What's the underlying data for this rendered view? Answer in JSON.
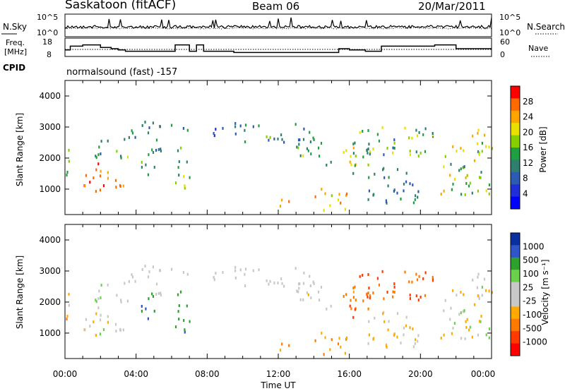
{
  "header": {
    "station_title": "Saskatoon (fitACF)",
    "beam_label": "Beam 06",
    "date_label": "20/Mar/2011"
  },
  "noise_panel": {
    "left_label": "N.Sky",
    "right_label": "N.Search",
    "left_ticks": [
      "10^5",
      "10^0"
    ],
    "right_ticks": [
      "10^5",
      "10^0"
    ]
  },
  "freq_panel": {
    "left_label_line1": "Freq.",
    "left_label_line2": "[MHz]",
    "right_label": "Nave",
    "left_ticks": [
      "18",
      "8"
    ],
    "right_ticks": [
      "60",
      "0"
    ],
    "freq_series": {
      "x_hours": [
        0,
        0.3,
        0.3,
        1.0,
        1.0,
        2.0,
        2.0,
        2.6,
        2.6,
        3.0,
        3.0,
        3.4,
        3.4,
        4.6,
        4.6,
        6.2,
        6.2,
        7.0,
        7.0,
        7.4,
        7.4,
        7.8,
        7.8,
        9.5,
        9.5,
        15.4,
        15.4,
        16.0,
        16.0,
        16.9,
        16.9,
        17.8,
        17.8,
        19.5,
        19.5,
        20.8,
        20.8,
        22.0,
        22.0,
        24.0
      ],
      "y_mhz": [
        12,
        12,
        15,
        15,
        16,
        16,
        14,
        14,
        13,
        13,
        12,
        12,
        11,
        11,
        11,
        11,
        16,
        16,
        11,
        11,
        16,
        16,
        11,
        11,
        10,
        10,
        13,
        13,
        12,
        12,
        11,
        11,
        15,
        15,
        15,
        15,
        16,
        16,
        13,
        13
      ]
    }
  },
  "cpid": {
    "label": "CPID",
    "program": "normalsound (fast) -157"
  },
  "chart_data": [
    {
      "type": "heatmap",
      "panel": "power",
      "ylabel": "Slant Range [km]",
      "xlim_hours": [
        0,
        24
      ],
      "ylim": [
        180,
        4500
      ],
      "y_ticks": [
        1000,
        2000,
        3000,
        4000
      ],
      "colorbar_label": "Power [dB]",
      "colorbar_ticks": [
        "28",
        "24",
        "20",
        "16",
        "12",
        "8",
        "4"
      ],
      "colorbar_colors": [
        "#ff0000",
        "#ff6a00",
        "#ffa500",
        "#e8e000",
        "#86d000",
        "#1f9f3f",
        "#2e7f6d",
        "#2e5bb2",
        "#1f2fd8",
        "#0000ff"
      ]
    },
    {
      "type": "heatmap",
      "panel": "velocity",
      "ylabel": "Slant Range [km]",
      "xlim_hours": [
        0,
        24
      ],
      "ylim": [
        180,
        4500
      ],
      "y_ticks": [
        1000,
        2000,
        3000,
        4000
      ],
      "colorbar_label": "Velocity [m s⁻¹]",
      "colorbar_ticks": [
        "1000",
        "500",
        "100",
        "25",
        "-25",
        "-100",
        "-500",
        "-1000"
      ],
      "colorbar_colors": [
        "#0a2f9f",
        "#2f56c9",
        "#2ea12d",
        "#6bd14d",
        "#c8c8c8",
        "#c8c8c8",
        "#ffaa00",
        "#ff7a00",
        "#ff3a00",
        "#ff0000"
      ]
    }
  ],
  "x_axis": {
    "label": "Time UT",
    "tick_labels": [
      "00:00",
      "04:00",
      "08:00",
      "12:00",
      "16:00",
      "20:00",
      "00:00"
    ]
  },
  "scatter_regions": [
    {
      "t0": 0.0,
      "t1": 0.3,
      "r0": 900,
      "r1": 2300,
      "pv": [
        12,
        16
      ],
      "vv": [
        -120,
        30
      ]
    },
    {
      "t0": 1.0,
      "t1": 2.5,
      "r0": 900,
      "r1": 1900,
      "pv": [
        20,
        30
      ],
      "vv": [
        -60,
        40
      ]
    },
    {
      "t0": 2.3,
      "t1": 3.3,
      "r0": 700,
      "r1": 1400,
      "pv": [
        22,
        30
      ],
      "vv": [
        -40,
        30
      ]
    },
    {
      "t0": 1.3,
      "t1": 2.6,
      "r0": 2000,
      "r1": 2600,
      "pv": [
        6,
        14
      ],
      "vv": [
        0,
        40
      ]
    },
    {
      "t0": 2.8,
      "t1": 3.6,
      "r0": 2000,
      "r1": 2900,
      "pv": [
        8,
        20
      ],
      "vv": [
        -20,
        30
      ]
    },
    {
      "t0": 3.6,
      "t1": 5.0,
      "r0": 2500,
      "r1": 3200,
      "pv": [
        6,
        16
      ],
      "vv": [
        -20,
        20
      ]
    },
    {
      "t0": 4.2,
      "t1": 5.2,
      "r0": 1300,
      "r1": 2300,
      "pv": [
        8,
        16
      ],
      "vv": [
        20,
        600
      ]
    },
    {
      "t0": 5.0,
      "t1": 6.0,
      "r0": 2200,
      "r1": 3100,
      "pv": [
        6,
        14
      ],
      "vv": [
        -20,
        20
      ]
    },
    {
      "t0": 6.1,
      "t1": 7.0,
      "r0": 1000,
      "r1": 2400,
      "pv": [
        10,
        20
      ],
      "vv": [
        30,
        600
      ]
    },
    {
      "t0": 6.6,
      "t1": 7.0,
      "r0": 2400,
      "r1": 3000,
      "pv": [
        6,
        12
      ],
      "vv": [
        -20,
        20
      ]
    },
    {
      "t0": 8.0,
      "t1": 10.0,
      "r0": 2700,
      "r1": 3200,
      "pv": [
        4,
        10
      ],
      "vv": [
        -20,
        20
      ]
    },
    {
      "t0": 10.0,
      "t1": 14.0,
      "r0": 2500,
      "r1": 3100,
      "pv": [
        6,
        16
      ],
      "vv": [
        -20,
        25
      ]
    },
    {
      "t0": 13.0,
      "t1": 15.0,
      "r0": 1700,
      "r1": 2600,
      "pv": [
        8,
        20
      ],
      "vv": [
        -30,
        20
      ]
    },
    {
      "t0": 14.0,
      "t1": 16.0,
      "r0": 300,
      "r1": 1000,
      "pv": [
        16,
        28
      ],
      "vv": [
        -150,
        -30
      ]
    },
    {
      "t0": 11.5,
      "t1": 12.8,
      "r0": 380,
      "r1": 650,
      "pv": [
        22,
        30
      ],
      "vv": [
        -200,
        -40
      ]
    },
    {
      "t0": 15.5,
      "t1": 17.5,
      "r0": 1500,
      "r1": 2500,
      "pv": [
        10,
        24
      ],
      "vv": [
        -700,
        -80
      ]
    },
    {
      "t0": 16.5,
      "t1": 20.8,
      "r0": 2000,
      "r1": 3000,
      "pv": [
        8,
        20
      ],
      "vv": [
        -900,
        -50
      ]
    },
    {
      "t0": 17.0,
      "t1": 20.0,
      "r0": 500,
      "r1": 1700,
      "pv": [
        6,
        14
      ],
      "vv": [
        -80,
        20
      ]
    },
    {
      "t0": 21.0,
      "t1": 24.0,
      "r0": 800,
      "r1": 2500,
      "pv": [
        8,
        24
      ],
      "vv": [
        -100,
        80
      ]
    },
    {
      "t0": 22.5,
      "t1": 24.0,
      "r0": 2700,
      "r1": 3000,
      "pv": [
        16,
        26
      ],
      "vv": [
        -20,
        20
      ]
    }
  ]
}
